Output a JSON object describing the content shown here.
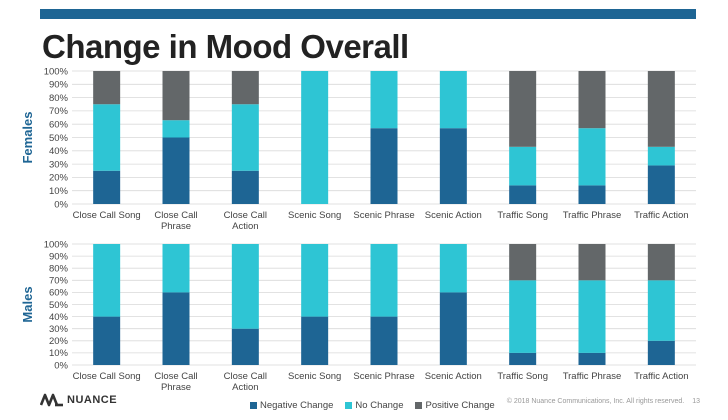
{
  "slide": {
    "title": "Change in Mood Overall",
    "footer_copyright": "© 2018 Nuance Communications, Inc. All rights reserved.",
    "page_number": "13",
    "logo_text": "NUANCE"
  },
  "colors": {
    "negative": "#1e6594",
    "no_change": "#2ec5d4",
    "positive": "#636769",
    "accent_bar": "#1e6594",
    "grid": "#d9d9d9",
    "side_label": "#1e6594"
  },
  "legend": [
    {
      "name": "Negative Change",
      "color": "#1e6594"
    },
    {
      "name": "No Change",
      "color": "#2ec5d4"
    },
    {
      "name": "Positive Change",
      "color": "#636769"
    }
  ],
  "chart_data": [
    {
      "type": "bar",
      "stacked": true,
      "side_label": "Females",
      "categories": [
        "Close Call Song",
        "Close Call Phrase",
        "Close Call Action",
        "Scenic Song",
        "Scenic Phrase",
        "Scenic Action",
        "Traffic Song",
        "Traffic Phrase",
        "Traffic Action"
      ],
      "y_ticks": [
        "0%",
        "10%",
        "20%",
        "30%",
        "40%",
        "50%",
        "60%",
        "70%",
        "80%",
        "90%",
        "100%"
      ],
      "ylim": [
        0,
        100
      ],
      "series": [
        {
          "name": "Negative Change",
          "values": [
            25,
            50,
            25,
            0,
            57,
            57,
            14,
            14,
            29
          ]
        },
        {
          "name": "No Change",
          "values": [
            50,
            13,
            50,
            100,
            43,
            43,
            29,
            43,
            14
          ]
        },
        {
          "name": "Positive Change",
          "values": [
            25,
            37,
            25,
            0,
            0,
            0,
            57,
            43,
            57
          ]
        }
      ]
    },
    {
      "type": "bar",
      "stacked": true,
      "side_label": "Males",
      "categories": [
        "Close Call Song",
        "Close Call Phrase",
        "Close Call Action",
        "Scenic Song",
        "Scenic Phrase",
        "Scenic Action",
        "Traffic Song",
        "Traffic Phrase",
        "Traffic Action"
      ],
      "y_ticks": [
        "0%",
        "10%",
        "20%",
        "30%",
        "40%",
        "50%",
        "60%",
        "70%",
        "80%",
        "90%",
        "100%"
      ],
      "ylim": [
        0,
        100
      ],
      "series": [
        {
          "name": "Negative Change",
          "values": [
            40,
            60,
            30,
            40,
            40,
            60,
            10,
            10,
            20
          ]
        },
        {
          "name": "No Change",
          "values": [
            60,
            40,
            70,
            60,
            60,
            40,
            60,
            60,
            50
          ]
        },
        {
          "name": "Positive Change",
          "values": [
            0,
            0,
            0,
            0,
            0,
            0,
            30,
            30,
            30
          ]
        }
      ]
    }
  ]
}
